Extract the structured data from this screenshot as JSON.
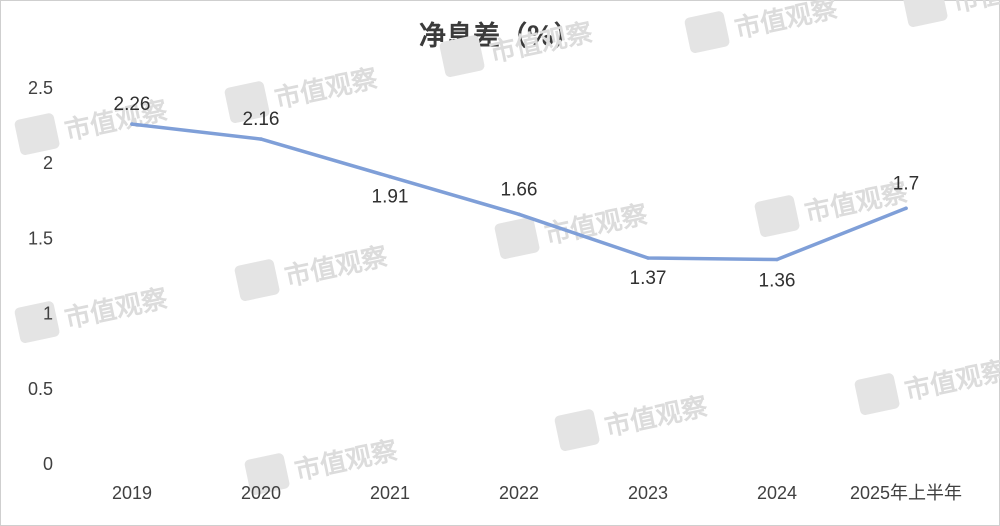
{
  "chart_data": {
    "type": "line",
    "title": "净息差（%）",
    "categories": [
      "2019",
      "2020",
      "2021",
      "2022",
      "2023",
      "2024",
      "2025年上半年"
    ],
    "series": [
      {
        "values": [
          2.26,
          2.16,
          1.91,
          1.66,
          1.37,
          1.36,
          1.7
        ],
        "color": "#7f9fd8"
      }
    ],
    "data_labels": [
      "2.26",
      "2.16",
      "1.91",
      "1.66",
      "1.37",
      "1.36",
      "1.7"
    ],
    "y_ticks": [
      "0",
      "0.5",
      "1",
      "1.5",
      "2",
      "2.5"
    ],
    "ylim": [
      0,
      2.5
    ],
    "grid": false,
    "legend": "none"
  },
  "watermark": {
    "text": "市值观察",
    "icon": "logo-icon"
  }
}
